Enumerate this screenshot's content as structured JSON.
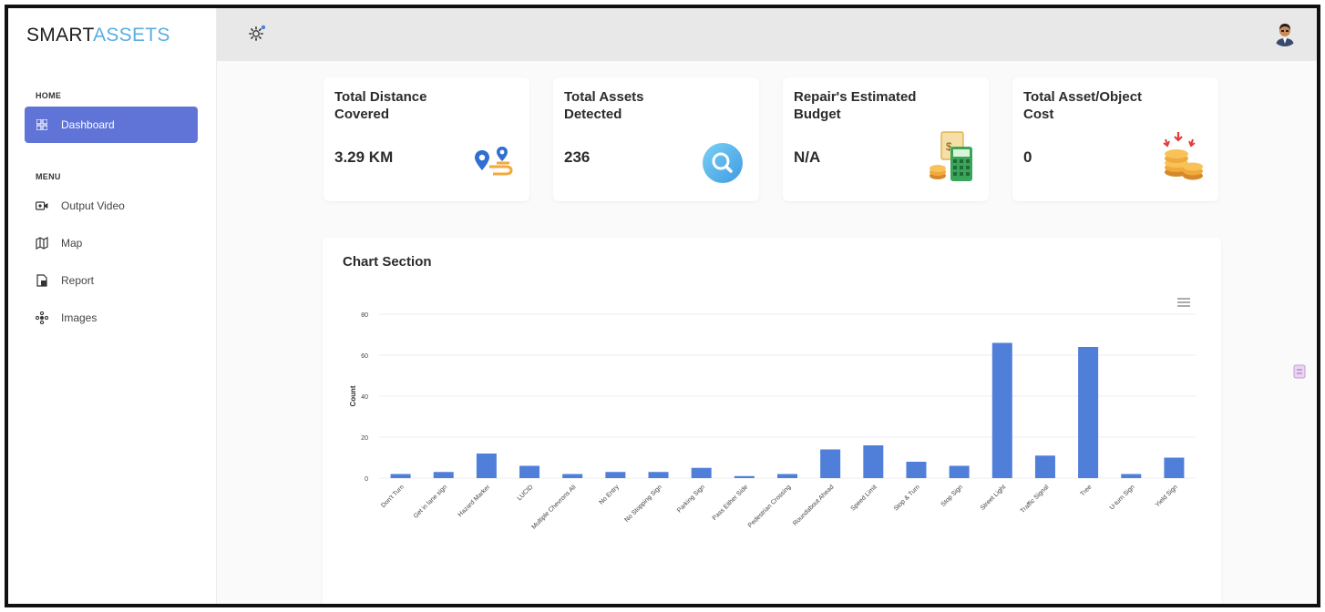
{
  "app": {
    "logo_part1": "SMART",
    "logo_part2": "ASSETS"
  },
  "sidebar": {
    "home_label": "HOME",
    "menu_label": "MENU",
    "items": [
      {
        "label": "Dashboard",
        "icon": "grid-icon",
        "active": true
      },
      {
        "label": "Output Video",
        "icon": "video-icon",
        "active": false
      },
      {
        "label": "Map",
        "icon": "map-icon",
        "active": false
      },
      {
        "label": "Report",
        "icon": "report-icon",
        "active": false
      },
      {
        "label": "Images",
        "icon": "images-icon",
        "active": false
      }
    ]
  },
  "header": {
    "settings_icon": "gear-icon",
    "avatar_icon": "user-avatar"
  },
  "cards": [
    {
      "title": "Total Distance Covered",
      "value": "3.29 KM",
      "icon": "route-pin-icon"
    },
    {
      "title": "Total Assets Detected",
      "value": "236",
      "icon": "search-circle-icon"
    },
    {
      "title": "Repair's Estimated Budget",
      "value": "N/A",
      "icon": "calculator-budget-icon"
    },
    {
      "title": "Total Asset/Object Cost",
      "value": "0",
      "icon": "coins-icon"
    }
  ],
  "chart_section": {
    "title": "Chart Section"
  },
  "chart_data": {
    "type": "bar",
    "ylabel": "Count",
    "xlabel": "",
    "ylim": [
      0,
      80
    ],
    "yticks": [
      0,
      20,
      40,
      60,
      80
    ],
    "grid": true,
    "color": "#4f7fd8",
    "categories": [
      "Don't Turn",
      "Get in lane sign",
      "Hazard Marker",
      "LUCID",
      "Multiple Chevrons Ali",
      "No Entry",
      "No Stopping Sign",
      "Parking Sign",
      "Pass Either Side",
      "Pedestrian Crossing",
      "Roundabout Ahead",
      "Speed Limit",
      "Stop & Turn",
      "Stop Sign",
      "Street Light",
      "Traffic Signal",
      "Tree",
      "U-turn Sign",
      "Yield Sign"
    ],
    "values": [
      2,
      3,
      12,
      6,
      2,
      3,
      3,
      5,
      1,
      2,
      14,
      16,
      8,
      6,
      66,
      11,
      64,
      2,
      10
    ]
  },
  "colors": {
    "accent": "#5f74d6",
    "brand_blue": "#5aaee0",
    "bar": "#4f7fd8",
    "header_bg": "#e8e8e8"
  }
}
